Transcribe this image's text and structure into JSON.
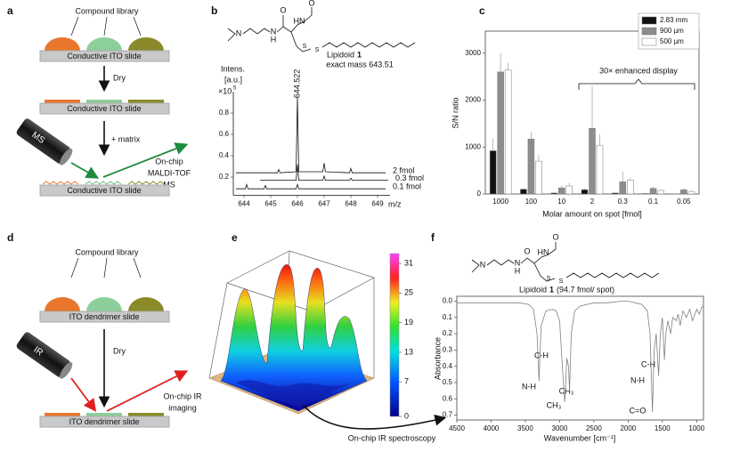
{
  "panel_a": {
    "label": "a",
    "library": "Compound library",
    "slides": [
      "Conductive ITO slide",
      "Conductive ITO slide",
      "Conductive ITO slide"
    ],
    "step1": "Dry",
    "step2": "+ matrix",
    "instrument": "MS",
    "result": [
      "On-chip",
      "MALDI-TOF",
      "MS"
    ]
  },
  "panel_b": {
    "label": "b",
    "atoms": [
      "N",
      "N",
      "H",
      "O",
      "HN",
      "O",
      "S",
      "S"
    ],
    "compound": "Lipidoid",
    "compound_number": "1",
    "exact_mass": "exact mass 643.51"
  },
  "panel_c": {
    "label": "c"
  },
  "panel_d": {
    "label": "d",
    "library": "Compound library",
    "slides": [
      "ITO dendrimer slide",
      "ITO dendrimer slide"
    ],
    "step1": "Dry",
    "instrument": "IR",
    "result": [
      "On-chip IR",
      "imaging"
    ]
  },
  "panel_e": {
    "label": "e",
    "colorbar": {
      "lim": [
        0,
        33
      ],
      "ticks": [
        0,
        7,
        13,
        19,
        25,
        31
      ]
    },
    "caption": "On-chip IR spectroscopy"
  },
  "panel_f": {
    "label": "f",
    "atoms": [
      "N",
      "N",
      "H",
      "O",
      "HN",
      "O",
      "S",
      "S"
    ],
    "compound": "Lipidoid",
    "compound_number": "1",
    "caption_rest": "(94.7 fmol/ spot)"
  },
  "chart_data": [
    {
      "type": "line",
      "y_title": [
        "Intens.",
        "[a.u.]"
      ],
      "y_scale": "×10",
      "y_scale_exp": "5",
      "x_title": "m/z",
      "peak_label": "644.522",
      "xlim": [
        643.6,
        649.8
      ],
      "ylim": [
        0.03,
        1.0
      ],
      "xticks": [
        644,
        645,
        646,
        647,
        648,
        649
      ],
      "yticks": [
        0.2,
        0.4,
        0.6,
        0.8
      ],
      "frame": false,
      "series": [
        {
          "name": "2 fmol",
          "color": "#111111",
          "x": [
            643.7,
            645.25,
            645.3,
            645.35,
            645.95,
            646.0,
            646.05,
            646.95,
            647.0,
            647.05,
            647.95,
            648.0,
            648.05,
            649.3
          ],
          "values": [
            0.24,
            0.24,
            0.27,
            0.24,
            0.25,
            0.95,
            0.25,
            0.25,
            0.33,
            0.25,
            0.24,
            0.28,
            0.24,
            0.24
          ]
        },
        {
          "name": "0.3 fmol",
          "color": "#111111",
          "x": [
            644.6,
            645.95,
            646.0,
            646.05,
            646.95,
            647.0,
            647.05,
            647.95,
            648.0,
            648.05,
            649.4
          ],
          "values": [
            0.17,
            0.17,
            0.32,
            0.17,
            0.17,
            0.21,
            0.17,
            0.17,
            0.19,
            0.17,
            0.17
          ]
        },
        {
          "name": "0.1 fmol",
          "color": "#111111",
          "x": [
            643.7,
            644.05,
            644.1,
            644.15,
            644.75,
            644.8,
            644.85,
            645.95,
            646.0,
            646.05,
            649.3
          ],
          "values": [
            0.09,
            0.09,
            0.13,
            0.09,
            0.09,
            0.12,
            0.09,
            0.09,
            0.13,
            0.09,
            0.09
          ]
        }
      ]
    },
    {
      "type": "bar",
      "x_title": "Molar amount on spot [fmol]",
      "y_title": "S/N ratio",
      "annotation": "30× enhanced display",
      "categories": [
        "1000",
        "100",
        "10",
        "2",
        "0.3",
        "0.1",
        "0.05"
      ],
      "ylim": [
        0,
        3470
      ],
      "yticks": [
        0,
        1000,
        2000,
        3000
      ],
      "legend": "top-right",
      "frame": true,
      "series": [
        {
          "name": "2.83 mm",
          "color": "#111111",
          "values": [
            920,
            100,
            20,
            90,
            20,
            10,
            5
          ],
          "errors": [
            260,
            30,
            20,
            30,
            10,
            10,
            5
          ]
        },
        {
          "name": "900 µm",
          "color": "#8c8c8c",
          "values": [
            2600,
            1170,
            130,
            1400,
            260,
            120,
            90
          ],
          "errors": [
            400,
            150,
            50,
            900,
            220,
            40,
            30
          ]
        },
        {
          "name": "500 µm",
          "color": "#ffffff",
          "values": [
            2640,
            700,
            170,
            1040,
            300,
            75,
            55
          ],
          "errors": [
            160,
            130,
            70,
            230,
            50,
            20,
            20
          ]
        }
      ]
    },
    {
      "type": "line",
      "x_title": "Wavenumber [cm⁻¹]",
      "y_title": "Absorbance",
      "annotations": [
        "N-H",
        "C-H",
        "CH₃",
        "CH₃",
        "C=O",
        "N-H",
        "C-H"
      ],
      "xlim": [
        4500,
        900
      ],
      "ylim": [
        -0.03,
        0.73
      ],
      "y_inverted": true,
      "frame": true,
      "xticks": [
        4500,
        4000,
        3500,
        3000,
        2500,
        2000,
        1500,
        1000
      ],
      "yticks": [
        {
          "value": 0,
          "label": "0.0"
        },
        0.1,
        0.2,
        0.3,
        0.4,
        0.5,
        0.6,
        0.7
      ],
      "x": [
        4500,
        4000,
        3600,
        3450,
        3380,
        3330,
        3300,
        3270,
        3200,
        3100,
        3050,
        3000,
        2960,
        2925,
        2895,
        2870,
        2855,
        2830,
        2780,
        2700,
        2500,
        2300,
        2100,
        2000,
        1900,
        1800,
        1720,
        1680,
        1645,
        1620,
        1590,
        1555,
        1530,
        1500,
        1470,
        1450,
        1420,
        1380,
        1350,
        1300,
        1270,
        1240,
        1200,
        1150,
        1100,
        1060,
        1000,
        960,
        930,
        900
      ],
      "series": [
        {
          "color": "#808080",
          "values": [
            0.01,
            0.01,
            0.01,
            0.02,
            0.05,
            0.2,
            0.49,
            0.15,
            0.06,
            0.05,
            0.06,
            0.12,
            0.4,
            0.62,
            0.35,
            0.4,
            0.55,
            0.2,
            0.06,
            0.03,
            0.01,
            0.01,
            0,
            0,
            0.01,
            0.02,
            0.06,
            0.2,
            0.68,
            0.3,
            0.2,
            0.46,
            0.2,
            0.1,
            0.36,
            0.2,
            0.12,
            0.2,
            0.1,
            0.12,
            0.08,
            0.15,
            0.06,
            0.1,
            0.05,
            0.12,
            0.05,
            0.08,
            0.04,
            0.03
          ]
        }
      ]
    }
  ]
}
